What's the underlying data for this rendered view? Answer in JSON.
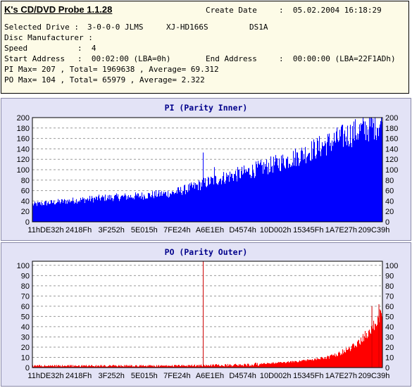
{
  "header": {
    "app_title": "K's CD/DVD Probe 1.1.28",
    "create_date_label": "Create Date",
    "create_date_value": ":  05.02.2004 16:18:29",
    "selected_drive_label": "Selected Drive :",
    "selected_drive_value": "3-0-0-0 JLMS",
    "drive_model": "XJ-HD166S",
    "drive_firmware": "DS1A",
    "disc_manufacturer_label": "Disc Manufacturer :",
    "speed_label": "Speed",
    "speed_value": ":  4",
    "start_address_label": "Start Address",
    "start_address_value": ":  00:02:00 (LBA=0h)",
    "end_address_label": "End Address",
    "end_address_value": ":  00:00:00 (LBA=22F1ADh)",
    "pi_summary": "PI Max= 207 , Total= 1969638 , Average= 69.312",
    "po_summary": "PO Max= 104 , Total= 65979 , Average= 2.322"
  },
  "chart_data": [
    {
      "type": "bar",
      "title": "PI (Parity Inner)",
      "color": "#0000ff",
      "ylim": [
        0,
        200
      ],
      "yticks": [
        0,
        20,
        40,
        60,
        80,
        100,
        120,
        140,
        160,
        180,
        200
      ],
      "xtick_labels": [
        "11hDE32h",
        "2418Fh",
        "3F252h",
        "5E015h",
        "7FE24h",
        "A6E1Eh",
        "D4574h",
        "10D002h",
        "15345Fh",
        "1A7E27h",
        "209C39h"
      ],
      "grid": true,
      "envelope": {
        "x": [
          0,
          0.1,
          0.2,
          0.3,
          0.4,
          0.45,
          0.5,
          0.55,
          0.6,
          0.65,
          0.7,
          0.75,
          0.8,
          0.85,
          0.9,
          0.95,
          1.0
        ],
        "y": [
          35,
          42,
          48,
          52,
          58,
          68,
          80,
          90,
          98,
          108,
          118,
          130,
          145,
          160,
          175,
          188,
          200
        ]
      },
      "spikes": [
        {
          "x": 0.488,
          "y": 133
        },
        {
          "x": 0.52,
          "y": 105
        }
      ]
    },
    {
      "type": "bar",
      "title": "PO (Parity Outer)",
      "color": "#ff0000",
      "ylim": [
        0,
        104
      ],
      "yticks": [
        0,
        10,
        20,
        30,
        40,
        50,
        60,
        70,
        80,
        90,
        100
      ],
      "xtick_labels": [
        "11hDE32h",
        "2418Fh",
        "3F252h",
        "5E015h",
        "7FE24h",
        "A6E1Eh",
        "D4574h",
        "10D002h",
        "15345Fh",
        "1A7E27h",
        "209C39h"
      ],
      "grid": true,
      "envelope": {
        "x": [
          0,
          0.2,
          0.4,
          0.6,
          0.65,
          0.7,
          0.75,
          0.8,
          0.85,
          0.88,
          0.91,
          0.94,
          0.97,
          1.0
        ],
        "y": [
          2,
          2,
          2,
          3,
          4,
          5,
          6,
          8,
          11,
          15,
          20,
          28,
          40,
          55
        ]
      },
      "spikes": [
        {
          "x": 0.488,
          "y": 104
        },
        {
          "x": 0.97,
          "y": 60
        },
        {
          "x": 0.99,
          "y": 62
        }
      ]
    }
  ]
}
